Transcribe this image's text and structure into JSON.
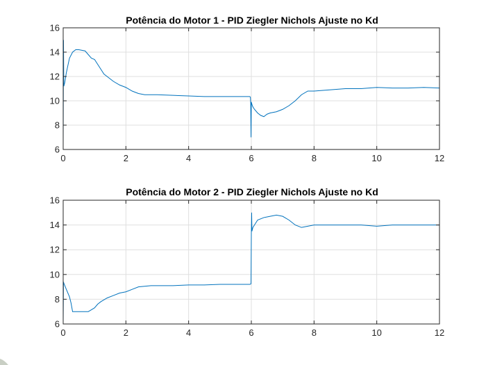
{
  "chart_data": [
    {
      "type": "line",
      "title": "Potência do Motor 1 - PID Ziegler Nichols Ajuste no Kd",
      "xlabel": "",
      "ylabel": "",
      "xlim": [
        0,
        12
      ],
      "ylim": [
        6,
        16
      ],
      "xticks": [
        0,
        2,
        4,
        6,
        8,
        10,
        12
      ],
      "yticks": [
        6,
        8,
        10,
        12,
        14,
        16
      ],
      "grid": true,
      "series": [
        {
          "name": "Motor 1",
          "color": "#0072bd",
          "x": [
            0,
            0.01,
            0.02,
            0.05,
            0.1,
            0.2,
            0.3,
            0.4,
            0.5,
            0.6,
            0.7,
            0.8,
            0.9,
            1.0,
            1.1,
            1.2,
            1.3,
            1.4,
            1.5,
            1.6,
            1.8,
            2.0,
            2.2,
            2.4,
            2.6,
            2.8,
            3.0,
            3.5,
            4.0,
            4.5,
            5.0,
            5.5,
            5.95,
            5.97,
            5.98,
            5.99,
            6.0,
            6.01,
            6.02,
            6.05,
            6.1,
            6.2,
            6.3,
            6.4,
            6.5,
            6.6,
            6.8,
            7.0,
            7.2,
            7.4,
            7.6,
            7.8,
            8.0,
            8.5,
            9.0,
            9.5,
            10.0,
            10.5,
            11.0,
            11.5,
            12.0
          ],
          "y": [
            6.3,
            15.0,
            11.2,
            11.5,
            12.3,
            13.5,
            14.0,
            14.2,
            14.2,
            14.15,
            14.1,
            13.8,
            13.5,
            13.4,
            13.0,
            12.6,
            12.2,
            12.0,
            11.8,
            11.6,
            11.3,
            11.1,
            10.8,
            10.6,
            10.5,
            10.5,
            10.5,
            10.45,
            10.4,
            10.35,
            10.35,
            10.35,
            10.35,
            10.3,
            9.8,
            7.0,
            9.9,
            9.8,
            9.7,
            9.5,
            9.3,
            9.0,
            8.8,
            8.7,
            8.9,
            9.0,
            9.1,
            9.3,
            9.6,
            10.0,
            10.5,
            10.8,
            10.8,
            10.9,
            11.0,
            11.0,
            11.1,
            11.05,
            11.05,
            11.1,
            11.05
          ]
        }
      ]
    },
    {
      "type": "line",
      "title": "Potência do Motor 2 - PID Ziegler Nichols Ajuste no Kd",
      "xlabel": "",
      "ylabel": "",
      "xlim": [
        0,
        12
      ],
      "ylim": [
        6,
        16
      ],
      "xticks": [
        0,
        2,
        4,
        6,
        8,
        10,
        12
      ],
      "yticks": [
        6,
        8,
        10,
        12,
        14,
        16
      ],
      "grid": true,
      "series": [
        {
          "name": "Motor 2",
          "color": "#0072bd",
          "x": [
            0,
            0.01,
            0.02,
            0.1,
            0.2,
            0.25,
            0.3,
            0.5,
            0.8,
            1.0,
            1.1,
            1.2,
            1.4,
            1.6,
            1.8,
            2.0,
            2.2,
            2.4,
            2.6,
            2.8,
            3.0,
            3.5,
            4.0,
            4.5,
            5.0,
            5.5,
            5.95,
            5.99,
            6.0,
            6.01,
            6.02,
            6.05,
            6.1,
            6.2,
            6.4,
            6.6,
            6.8,
            7.0,
            7.2,
            7.4,
            7.6,
            7.8,
            8.0,
            8.5,
            9.0,
            9.5,
            10.0,
            10.5,
            11.0,
            11.5,
            12.0
          ],
          "y": [
            6.1,
            9.4,
            9.3,
            8.8,
            8.2,
            7.7,
            7.0,
            7.0,
            7.0,
            7.3,
            7.6,
            7.8,
            8.1,
            8.3,
            8.5,
            8.6,
            8.8,
            9.0,
            9.05,
            9.1,
            9.1,
            9.1,
            9.15,
            9.15,
            9.2,
            9.2,
            9.2,
            9.25,
            13.2,
            15.0,
            13.5,
            13.8,
            14.0,
            14.4,
            14.6,
            14.7,
            14.8,
            14.7,
            14.4,
            14.0,
            13.8,
            13.9,
            14.0,
            14.0,
            14.0,
            14.0,
            13.9,
            14.0,
            14.0,
            14.0,
            14.0
          ]
        }
      ]
    }
  ]
}
